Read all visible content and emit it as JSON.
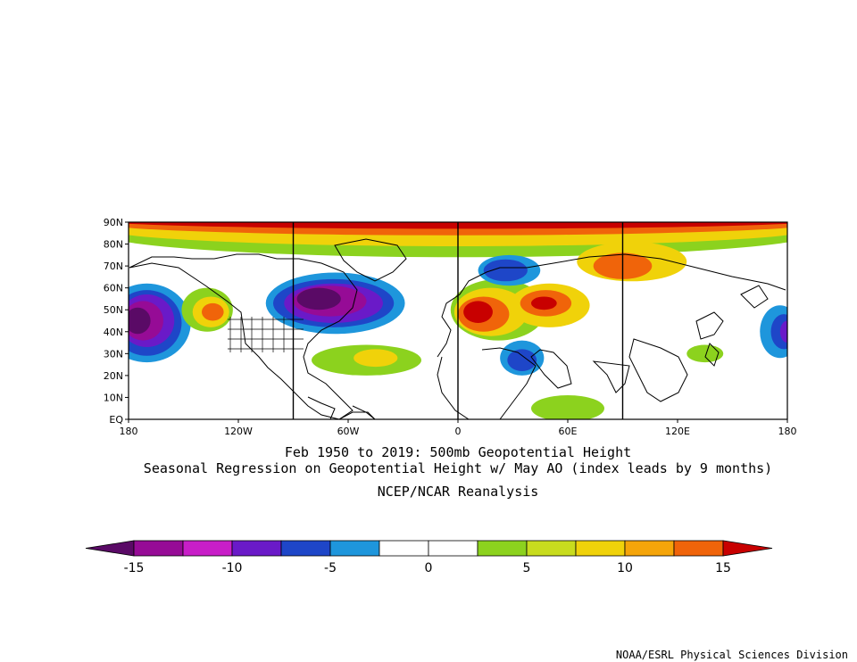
{
  "titles": {
    "line1": "Feb 1950 to 2019: 500mb Geopotential Height",
    "line2": "Seasonal Regression on Geopotential Height  w/ May AO (index leads by 9 months)",
    "line3": "NCEP/NCAR Reanalysis"
  },
  "credit": "NOAA/ESRL Physical Sciences Division",
  "axes": {
    "lat_labels": [
      "90N",
      "80N",
      "70N",
      "60N",
      "50N",
      "40N",
      "30N",
      "20N",
      "10N",
      "EQ"
    ],
    "lon_labels": [
      "180",
      "120W",
      "60W",
      "0",
      "60E",
      "120E",
      "180"
    ],
    "extent": {
      "lon": [
        -180,
        180
      ],
      "lat": [
        0,
        90
      ]
    }
  },
  "colorbar": {
    "labels": [
      "-15",
      "-10",
      "-5",
      "0",
      "5",
      "10",
      "15"
    ],
    "colors": [
      "#5a0a66",
      "#960b96",
      "#c81ec8",
      "#6a1ac8",
      "#1e46c8",
      "#1e96dc",
      "#ffffff",
      "#ffffff",
      "#8cd21e",
      "#c8dc1e",
      "#f0d20a",
      "#f5a50a",
      "#f0640a",
      "#c80000"
    ]
  },
  "field": {
    "background_color": "#ffffff",
    "features": [
      {
        "name": "polar-cap-outer",
        "lon": 0,
        "lat": 86,
        "rx": 200,
        "ry": 12,
        "color": "#8cd21e"
      },
      {
        "name": "polar-cap-mid",
        "lon": 0,
        "lat": 88,
        "rx": 200,
        "ry": 9,
        "color": "#f0d20a"
      },
      {
        "name": "polar-cap-inner",
        "lon": 0,
        "lat": 90,
        "rx": 200,
        "ry": 6,
        "color": "#f0640a"
      },
      {
        "name": "polar-cap-core",
        "lon": 0,
        "lat": 91,
        "rx": 200,
        "ry": 4,
        "color": "#c80000"
      },
      {
        "name": "north-pacific-low-1",
        "lon": -170,
        "lat": 44,
        "rx": 24,
        "ry": 18,
        "color": "#1e96dc"
      },
      {
        "name": "north-pacific-low-2",
        "lon": -170,
        "lat": 44,
        "rx": 19,
        "ry": 15,
        "color": "#1e46c8"
      },
      {
        "name": "north-pacific-low-3",
        "lon": -170,
        "lat": 45,
        "rx": 15,
        "ry": 12,
        "color": "#6a1ac8"
      },
      {
        "name": "north-pacific-low-4",
        "lon": -172,
        "lat": 45,
        "rx": 11,
        "ry": 9,
        "color": "#960b96"
      },
      {
        "name": "north-pacific-low-5",
        "lon": -175,
        "lat": 45,
        "rx": 7,
        "ry": 6,
        "color": "#5a0a66"
      },
      {
        "name": "nw-america-high-1",
        "lon": -137,
        "lat": 50,
        "rx": 14,
        "ry": 10,
        "color": "#8cd21e"
      },
      {
        "name": "nw-america-high-2",
        "lon": -135,
        "lat": 49,
        "rx": 10,
        "ry": 7,
        "color": "#f0d20a"
      },
      {
        "name": "nw-america-high-3",
        "lon": -134,
        "lat": 49,
        "rx": 6,
        "ry": 4,
        "color": "#f0640a"
      },
      {
        "name": "hudson-low-1",
        "lon": -67,
        "lat": 53,
        "rx": 38,
        "ry": 14,
        "color": "#1e96dc"
      },
      {
        "name": "hudson-low-2",
        "lon": -68,
        "lat": 53,
        "rx": 33,
        "ry": 11,
        "color": "#1e46c8"
      },
      {
        "name": "hudson-low-3",
        "lon": -68,
        "lat": 53,
        "rx": 27,
        "ry": 9,
        "color": "#6a1ac8"
      },
      {
        "name": "hudson-low-4",
        "lon": -70,
        "lat": 54,
        "rx": 20,
        "ry": 7,
        "color": "#960b96"
      },
      {
        "name": "hudson-low-5",
        "lon": -76,
        "lat": 55,
        "rx": 12,
        "ry": 5,
        "color": "#5a0a66"
      },
      {
        "name": "atlantic-high-1",
        "lon": -50,
        "lat": 27,
        "rx": 30,
        "ry": 7,
        "color": "#8cd21e"
      },
      {
        "name": "atlantic-high-2",
        "lon": -45,
        "lat": 28,
        "rx": 12,
        "ry": 4,
        "color": "#f0d20a"
      },
      {
        "name": "europe-high-1",
        "lon": 22,
        "lat": 50,
        "rx": 26,
        "ry": 14,
        "color": "#8cd21e"
      },
      {
        "name": "europe-high-2",
        "lon": 18,
        "lat": 49,
        "rx": 20,
        "ry": 11,
        "color": "#f0d20a"
      },
      {
        "name": "europe-high-3",
        "lon": 14,
        "lat": 48,
        "rx": 14,
        "ry": 8,
        "color": "#f0640a"
      },
      {
        "name": "europe-high-4",
        "lon": 11,
        "lat": 49,
        "rx": 8,
        "ry": 5,
        "color": "#c80000"
      },
      {
        "name": "west-siberia-high-1",
        "lon": 50,
        "lat": 52,
        "rx": 22,
        "ry": 10,
        "color": "#f0d20a"
      },
      {
        "name": "west-siberia-high-2",
        "lon": 48,
        "lat": 53,
        "rx": 14,
        "ry": 6,
        "color": "#f0640a"
      },
      {
        "name": "west-siberia-high-3",
        "lon": 47,
        "lat": 53,
        "rx": 7,
        "ry": 3,
        "color": "#c80000"
      },
      {
        "name": "east-siberia-high-1",
        "lon": 95,
        "lat": 72,
        "rx": 30,
        "ry": 9,
        "color": "#f0d20a"
      },
      {
        "name": "east-siberia-high-2",
        "lon": 90,
        "lat": 70,
        "rx": 16,
        "ry": 6,
        "color": "#f0640a"
      },
      {
        "name": "barents-low-1",
        "lon": 28,
        "lat": 68,
        "rx": 17,
        "ry": 7,
        "color": "#1e96dc"
      },
      {
        "name": "barents-low-2",
        "lon": 26,
        "lat": 68,
        "rx": 12,
        "ry": 5,
        "color": "#1e46c8"
      },
      {
        "name": "middle-east-low-1",
        "lon": 35,
        "lat": 28,
        "rx": 12,
        "ry": 8,
        "color": "#1e96dc"
      },
      {
        "name": "middle-east-low-2",
        "lon": 35,
        "lat": 27,
        "rx": 8,
        "ry": 5,
        "color": "#1e46c8"
      },
      {
        "name": "east-pacific-low-1",
        "lon": 176,
        "lat": 40,
        "rx": 11,
        "ry": 12,
        "color": "#1e96dc"
      },
      {
        "name": "east-pacific-low-2",
        "lon": 178,
        "lat": 40,
        "rx": 7,
        "ry": 8,
        "color": "#1e46c8"
      },
      {
        "name": "east-pacific-low-3",
        "lon": 180,
        "lat": 40,
        "rx": 4,
        "ry": 5,
        "color": "#6a1ac8"
      },
      {
        "name": "arabian-high",
        "lon": 60,
        "lat": 5,
        "rx": 20,
        "ry": 6,
        "color": "#8cd21e"
      },
      {
        "name": "nw-pacific-high",
        "lon": 135,
        "lat": 30,
        "rx": 10,
        "ry": 4,
        "color": "#8cd21e"
      }
    ]
  }
}
